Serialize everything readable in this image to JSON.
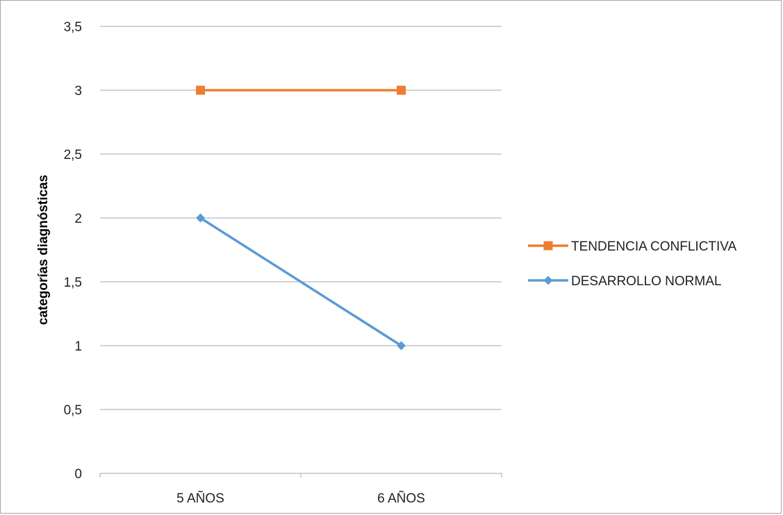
{
  "chart_data": {
    "type": "line",
    "title": "",
    "xlabel": "",
    "ylabel": "categorías diagnósticas",
    "categories": [
      "5 AÑOS",
      "6 AÑOS"
    ],
    "ylim": [
      0,
      3.5
    ],
    "ytick_values": [
      0,
      0.5,
      1,
      1.5,
      2,
      2.5,
      3,
      3.5
    ],
    "ytick_labels": [
      "0",
      "0,5",
      "1",
      "1,5",
      "2",
      "2,5",
      "3",
      "3,5"
    ],
    "grid": true,
    "legend_position": "right",
    "series": [
      {
        "name": "TENDENCIA CONFLICTIVA",
        "values": [
          3,
          3
        ],
        "color": "#ed7d31",
        "marker": "square"
      },
      {
        "name": "DESARROLLO NORMAL",
        "values": [
          2,
          1
        ],
        "color": "#5b9bd5",
        "marker": "diamond"
      }
    ]
  }
}
